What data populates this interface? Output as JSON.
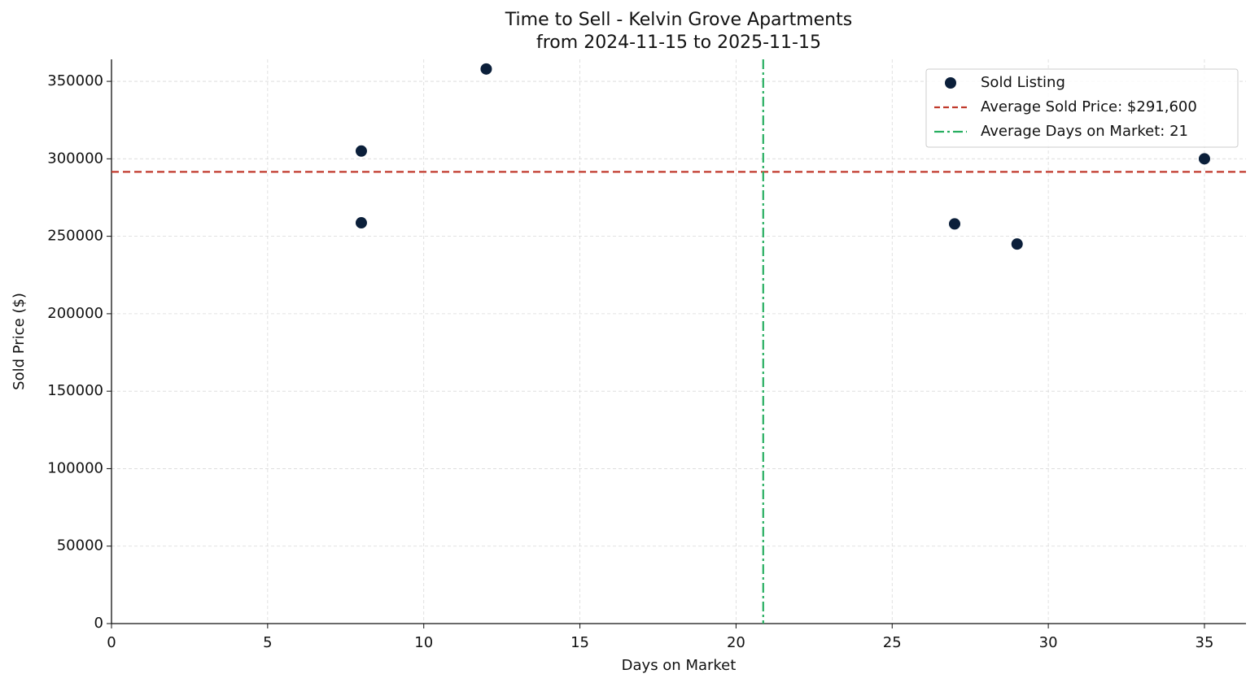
{
  "chart_data": {
    "type": "scatter",
    "title": "Time to Sell - Kelvin Grove Apartments",
    "subtitle": "from 2024-11-15 to 2025-11-15",
    "x_label": "Days on Market",
    "y_label": "Sold Price ($)",
    "series": [
      {
        "name": "Sold Listing",
        "color": "#0b1f3a",
        "x": [
          8,
          8,
          12,
          27,
          29,
          35
        ],
        "values": [
          305000,
          258700,
          358000,
          258000,
          245000,
          300000
        ]
      }
    ],
    "reference_lines": [
      {
        "name": "Average Sold Price: $291,600",
        "orientation": "horizontal",
        "value": 291600,
        "color": "#c0392b",
        "style": "dashed"
      },
      {
        "name": "Average Days on Market: 21",
        "orientation": "vertical",
        "value": 20.87,
        "color": "#27ae60",
        "style": "dashdot"
      }
    ],
    "xlim": [
      0,
      36.33
    ],
    "xticks": [
      0,
      5,
      10,
      15,
      20,
      25,
      30,
      35
    ],
    "ylim": [
      0,
      364200
    ],
    "yticks": [
      0,
      50000,
      100000,
      150000,
      200000,
      250000,
      300000,
      350000
    ],
    "grid": true,
    "legend": "upper right"
  }
}
